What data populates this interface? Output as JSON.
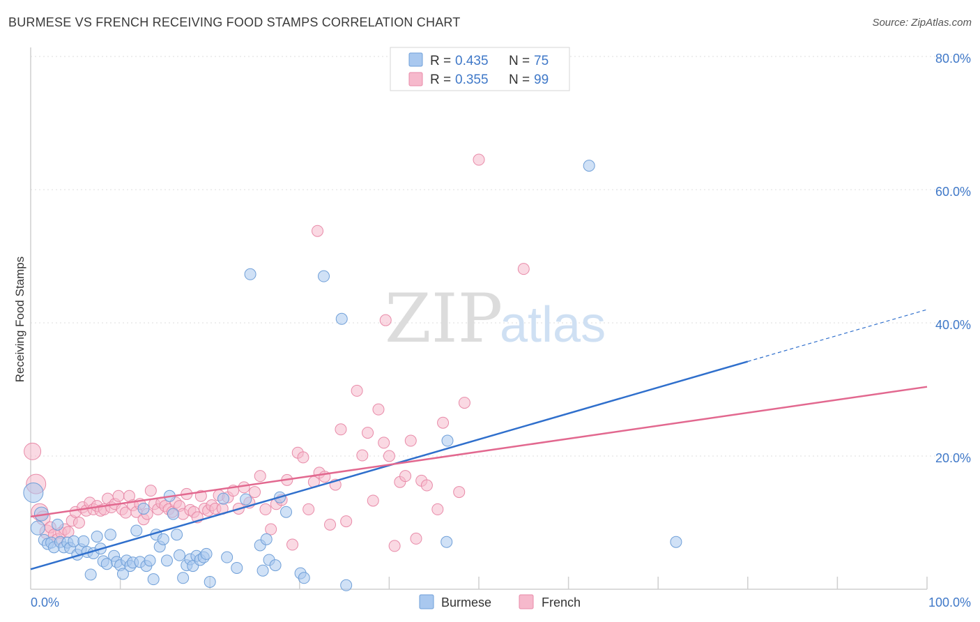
{
  "header": {
    "title": "BURMESE VS FRENCH RECEIVING FOOD STAMPS CORRELATION CHART",
    "source": "Source: ZipAtlas.com"
  },
  "watermark": {
    "zip": "ZIP",
    "atlas": "atlas"
  },
  "legend": {
    "r_label": "R =",
    "n_label": "N =",
    "entries": [
      {
        "name": "Burmese",
        "r": "0.435",
        "n": "75"
      },
      {
        "name": "French",
        "r": "0.355",
        "n": "99"
      }
    ]
  },
  "colors": {
    "burmese_fill": "#a9c8ef",
    "burmese_stroke": "#6f9fd8",
    "burmese_line": "#2f6fcc",
    "french_fill": "#f6b9cc",
    "french_stroke": "#e88aa8",
    "french_line": "#e2688f",
    "tick": "#3f78c8"
  },
  "chart_data": {
    "type": "scatter",
    "title": "BURMESE VS FRENCH RECEIVING FOOD STAMPS CORRELATION CHART",
    "xlabel": "",
    "ylabel": "Receiving Food Stamps",
    "xlim": [
      0,
      100
    ],
    "ylim": [
      0,
      80
    ],
    "x_tick_labels": [
      "0.0%",
      "100.0%"
    ],
    "y_ticks": [
      20,
      40,
      60,
      80
    ],
    "y_tick_labels": [
      "20.0%",
      "40.0%",
      "60.0%",
      "80.0%"
    ],
    "grid": true,
    "legend_position": "top-center",
    "series": [
      {
        "name": "Burmese",
        "r": 0.435,
        "n": 75,
        "trend": {
          "x0": 0,
          "y0": 3.0,
          "x1": 80,
          "y1": 34.2,
          "dashed_to_x": 100,
          "dashed_to_y": 42.0
        },
        "points": [
          [
            0.3,
            14.5,
            14
          ],
          [
            0.8,
            9.2,
            10
          ],
          [
            1.2,
            11.3,
            10
          ],
          [
            1.5,
            7.4,
            8
          ],
          [
            1.9,
            6.8,
            8
          ],
          [
            2.3,
            7.0,
            8
          ],
          [
            2.6,
            6.3,
            8
          ],
          [
            3.0,
            9.7,
            8
          ],
          [
            3.3,
            7.1,
            8
          ],
          [
            3.7,
            6.3,
            8
          ],
          [
            4.1,
            7.0,
            8
          ],
          [
            4.4,
            6.2,
            8
          ],
          [
            4.8,
            7.2,
            8
          ],
          [
            5.2,
            5.2,
            8
          ],
          [
            5.6,
            6.0,
            8
          ],
          [
            5.9,
            7.2,
            8
          ],
          [
            6.3,
            5.6,
            8
          ],
          [
            6.7,
            2.2,
            8
          ],
          [
            7.0,
            5.4,
            8
          ],
          [
            7.4,
            7.9,
            8
          ],
          [
            7.8,
            6.1,
            8
          ],
          [
            8.1,
            4.2,
            8
          ],
          [
            8.5,
            3.8,
            8
          ],
          [
            8.9,
            8.2,
            8
          ],
          [
            9.3,
            5.0,
            8
          ],
          [
            9.6,
            4.1,
            8
          ],
          [
            10.0,
            3.6,
            8
          ],
          [
            10.3,
            2.3,
            8
          ],
          [
            10.7,
            4.3,
            8
          ],
          [
            11.1,
            3.5,
            8
          ],
          [
            11.4,
            4.0,
            8
          ],
          [
            11.8,
            8.8,
            8
          ],
          [
            12.2,
            4.1,
            8
          ],
          [
            12.6,
            12.1,
            8
          ],
          [
            12.9,
            3.5,
            8
          ],
          [
            13.3,
            4.3,
            8
          ],
          [
            13.7,
            1.5,
            8
          ],
          [
            14.0,
            8.2,
            8
          ],
          [
            14.4,
            6.4,
            8
          ],
          [
            14.8,
            7.5,
            8
          ],
          [
            15.2,
            4.3,
            8
          ],
          [
            15.5,
            14.0,
            8
          ],
          [
            15.9,
            11.3,
            8
          ],
          [
            16.3,
            8.2,
            8
          ],
          [
            16.6,
            5.1,
            8
          ],
          [
            17.0,
            1.7,
            8
          ],
          [
            17.4,
            3.6,
            8
          ],
          [
            17.8,
            4.5,
            8
          ],
          [
            18.1,
            3.5,
            8
          ],
          [
            18.5,
            5.0,
            8
          ],
          [
            18.9,
            4.4,
            8
          ],
          [
            19.3,
            4.8,
            8
          ],
          [
            19.6,
            5.3,
            8
          ],
          [
            20.0,
            1.1,
            8
          ],
          [
            21.5,
            13.6,
            8
          ],
          [
            21.9,
            4.8,
            8
          ],
          [
            23.0,
            3.2,
            8
          ],
          [
            24.0,
            13.5,
            8
          ],
          [
            24.5,
            47.3,
            8
          ],
          [
            25.6,
            6.6,
            8
          ],
          [
            25.9,
            2.8,
            8
          ],
          [
            26.3,
            7.5,
            8
          ],
          [
            26.6,
            4.4,
            8
          ],
          [
            27.3,
            3.6,
            8
          ],
          [
            27.8,
            13.8,
            8
          ],
          [
            28.5,
            11.6,
            8
          ],
          [
            30.1,
            2.4,
            8
          ],
          [
            30.5,
            1.7,
            8
          ],
          [
            32.7,
            47.0,
            8
          ],
          [
            34.7,
            40.6,
            8
          ],
          [
            35.2,
            0.6,
            8
          ],
          [
            46.4,
            7.1,
            8
          ],
          [
            46.5,
            22.3,
            8
          ],
          [
            72.0,
            7.1,
            8
          ],
          [
            62.3,
            63.6,
            8
          ]
        ]
      },
      {
        "name": "French",
        "r": 0.355,
        "n": 99,
        "trend": {
          "x0": 0,
          "y0": 10.9,
          "x1": 100,
          "y1": 30.4
        },
        "points": [
          [
            0.2,
            20.7,
            12
          ],
          [
            0.6,
            15.8,
            14
          ],
          [
            1.0,
            11.6,
            12
          ],
          [
            1.4,
            10.7,
            10
          ],
          [
            1.8,
            8.6,
            10
          ],
          [
            2.2,
            9.3,
            8
          ],
          [
            2.6,
            8.2,
            8
          ],
          [
            3.0,
            7.5,
            8
          ],
          [
            3.4,
            8.5,
            8
          ],
          [
            3.8,
            9.0,
            8
          ],
          [
            4.2,
            8.6,
            8
          ],
          [
            4.6,
            10.3,
            8
          ],
          [
            5.0,
            11.6,
            8
          ],
          [
            5.4,
            10.0,
            8
          ],
          [
            5.8,
            12.3,
            8
          ],
          [
            6.2,
            11.8,
            8
          ],
          [
            6.6,
            13.0,
            8
          ],
          [
            7.0,
            12.0,
            8
          ],
          [
            7.4,
            12.5,
            8
          ],
          [
            7.8,
            11.8,
            8
          ],
          [
            8.2,
            12.0,
            8
          ],
          [
            8.6,
            13.6,
            8
          ],
          [
            9.0,
            12.3,
            8
          ],
          [
            9.4,
            12.8,
            8
          ],
          [
            9.8,
            14.0,
            8
          ],
          [
            10.2,
            12.0,
            8
          ],
          [
            10.6,
            11.5,
            8
          ],
          [
            11.0,
            14.0,
            8
          ],
          [
            11.4,
            12.6,
            8
          ],
          [
            11.8,
            11.6,
            8
          ],
          [
            12.2,
            12.8,
            8
          ],
          [
            12.6,
            10.5,
            8
          ],
          [
            13.0,
            11.3,
            8
          ],
          [
            13.4,
            14.8,
            8
          ],
          [
            13.8,
            12.8,
            8
          ],
          [
            14.2,
            12.0,
            8
          ],
          [
            14.6,
            13.0,
            8
          ],
          [
            15.0,
            12.5,
            8
          ],
          [
            15.4,
            12.0,
            8
          ],
          [
            15.8,
            11.6,
            8
          ],
          [
            16.2,
            13.0,
            8
          ],
          [
            16.6,
            12.5,
            8
          ],
          [
            17.0,
            11.3,
            8
          ],
          [
            17.4,
            14.3,
            8
          ],
          [
            17.8,
            11.9,
            8
          ],
          [
            18.2,
            11.6,
            8
          ],
          [
            18.6,
            10.8,
            8
          ],
          [
            19.0,
            14.0,
            8
          ],
          [
            19.4,
            12.1,
            8
          ],
          [
            19.8,
            11.8,
            8
          ],
          [
            20.2,
            12.6,
            8
          ],
          [
            20.6,
            12.1,
            8
          ],
          [
            21.0,
            14.1,
            8
          ],
          [
            21.4,
            12.1,
            8
          ],
          [
            22.0,
            13.8,
            8
          ],
          [
            22.6,
            14.8,
            8
          ],
          [
            23.2,
            12.1,
            8
          ],
          [
            23.8,
            15.3,
            8
          ],
          [
            24.4,
            13.0,
            8
          ],
          [
            25.0,
            14.6,
            8
          ],
          [
            25.6,
            17.0,
            8
          ],
          [
            26.2,
            12.0,
            8
          ],
          [
            26.8,
            9.0,
            8
          ],
          [
            27.4,
            12.8,
            8
          ],
          [
            28.0,
            13.4,
            8
          ],
          [
            28.6,
            16.4,
            8
          ],
          [
            29.2,
            6.7,
            8
          ],
          [
            29.8,
            20.5,
            8
          ],
          [
            30.4,
            19.8,
            8
          ],
          [
            31.0,
            12.0,
            8
          ],
          [
            31.6,
            16.1,
            8
          ],
          [
            32.2,
            17.5,
            8
          ],
          [
            32.8,
            16.9,
            8
          ],
          [
            33.4,
            9.7,
            8
          ],
          [
            34.0,
            15.7,
            8
          ],
          [
            34.6,
            24.0,
            8
          ],
          [
            35.2,
            10.2,
            8
          ],
          [
            32.0,
            53.8,
            8
          ],
          [
            36.4,
            29.8,
            8
          ],
          [
            37.0,
            20.1,
            8
          ],
          [
            37.6,
            23.5,
            8
          ],
          [
            38.2,
            13.3,
            8
          ],
          [
            38.8,
            27.0,
            8
          ],
          [
            39.4,
            22.0,
            8
          ],
          [
            40.0,
            20.0,
            8
          ],
          [
            40.6,
            6.5,
            8
          ],
          [
            41.2,
            16.1,
            8
          ],
          [
            41.8,
            17.0,
            8
          ],
          [
            42.4,
            22.3,
            8
          ],
          [
            43.0,
            7.6,
            8
          ],
          [
            39.6,
            40.4,
            8
          ],
          [
            43.6,
            16.3,
            8
          ],
          [
            45.4,
            12.0,
            8
          ],
          [
            46.0,
            25.0,
            8
          ],
          [
            44.2,
            15.6,
            8
          ],
          [
            47.8,
            14.6,
            8
          ],
          [
            48.4,
            28.0,
            8
          ],
          [
            50.0,
            64.5,
            8
          ],
          [
            55.0,
            48.1,
            8
          ]
        ]
      }
    ]
  }
}
